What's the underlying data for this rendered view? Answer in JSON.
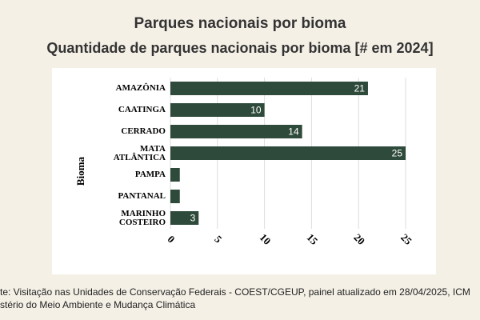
{
  "chart_data": {
    "type": "bar",
    "orientation": "horizontal",
    "title": "Parques nacionais por bioma",
    "subtitle": "Quantidade de parques nacionais por bioma [# em 2024]",
    "y_label": "Bioma",
    "categories": [
      "AMAZÔNIA",
      "CAATINGA",
      "CERRADO",
      "MATA ATLÂNTICA",
      "PAMPA",
      "PANTANAL",
      "MARINHO COSTEIRO"
    ],
    "values": [
      21,
      10,
      14,
      25,
      1,
      1,
      3
    ],
    "color": "#2e4a3b",
    "xlim": [
      0,
      25
    ],
    "xticks": [
      0,
      5,
      10,
      15,
      20,
      25
    ],
    "grid": true,
    "source": [
      "te: Visitação nas Unidades de Conservação Federais - COEST/CGEUP, painel atualizado em 28/04/2025, ICM",
      "stério do Meio Ambiente e Mudança Climática"
    ]
  }
}
